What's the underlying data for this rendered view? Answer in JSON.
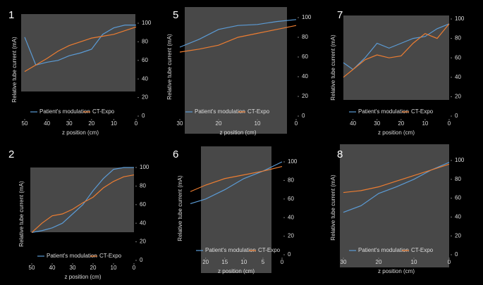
{
  "chart_data": [
    {
      "type": "line",
      "title": "1",
      "y_label": "Relative tube current (mA)",
      "x_label": "z position (cm)",
      "xlim": [
        50,
        0
      ],
      "ylim": [
        0,
        100
      ],
      "xticks": [
        50,
        40,
        30,
        20,
        10,
        0
      ],
      "yticks": [
        0,
        20,
        40,
        60,
        80,
        100
      ],
      "x": [
        50,
        45,
        40,
        35,
        30,
        25,
        20,
        15,
        10,
        5,
        0
      ],
      "series": [
        {
          "name": "Patient's modulation",
          "color": "#5b9bd5",
          "values": [
            85,
            55,
            58,
            60,
            65,
            68,
            72,
            88,
            95,
            98,
            98
          ]
        },
        {
          "name": "CT-Expo",
          "color": "#ed7d31",
          "values": [
            48,
            55,
            62,
            70,
            76,
            80,
            84,
            86,
            88,
            92,
            96
          ]
        }
      ]
    },
    {
      "type": "line",
      "title": "5",
      "y_label": "Relative tube current (mA)",
      "x_label": "z position (cm)",
      "xlim": [
        30,
        0
      ],
      "ylim": [
        0,
        100
      ],
      "xticks": [
        30,
        20,
        10,
        0
      ],
      "yticks": [
        0,
        20,
        40,
        60,
        80,
        100
      ],
      "x": [
        30,
        25,
        20,
        15,
        10,
        5,
        0
      ],
      "series": [
        {
          "name": "Patient's modulation",
          "color": "#5b9bd5",
          "values": [
            70,
            78,
            88,
            92,
            93,
            96,
            98
          ]
        },
        {
          "name": "CT-Expo",
          "color": "#ed7d31",
          "values": [
            65,
            68,
            72,
            80,
            84,
            88,
            92
          ]
        }
      ]
    },
    {
      "type": "line",
      "title": "7",
      "y_label": "Relative tube current (mA)",
      "x_label": "z position (cm)",
      "xlim": [
        44,
        0
      ],
      "ylim": [
        0,
        100
      ],
      "xticks": [
        40,
        30,
        20,
        10,
        0
      ],
      "yticks": [
        0,
        20,
        40,
        60,
        80,
        100
      ],
      "x": [
        44,
        40,
        35,
        30,
        25,
        20,
        15,
        10,
        5,
        0
      ],
      "series": [
        {
          "name": "Patient's modulation",
          "color": "#5b9bd5",
          "values": [
            55,
            48,
            60,
            75,
            70,
            75,
            80,
            82,
            90,
            95
          ]
        },
        {
          "name": "CT-Expo",
          "color": "#ed7d31",
          "values": [
            40,
            48,
            58,
            63,
            60,
            62,
            75,
            85,
            80,
            95
          ]
        }
      ]
    },
    {
      "type": "line",
      "title": "2",
      "y_label": "Relative tube current (mA)",
      "x_label": "z position (cm)",
      "xlim": [
        50,
        0
      ],
      "ylim": [
        0,
        100
      ],
      "xticks": [
        50,
        40,
        30,
        20,
        10,
        0
      ],
      "yticks": [
        0,
        20,
        40,
        60,
        80,
        100
      ],
      "x": [
        50,
        45,
        40,
        35,
        30,
        25,
        20,
        15,
        10,
        5,
        0
      ],
      "series": [
        {
          "name": "Patient's modulation",
          "color": "#5b9bd5",
          "values": [
            30,
            32,
            35,
            40,
            50,
            60,
            75,
            88,
            98,
            100,
            100
          ]
        },
        {
          "name": "CT-Expo",
          "color": "#ed7d31",
          "values": [
            30,
            40,
            48,
            50,
            55,
            62,
            68,
            78,
            85,
            90,
            92
          ]
        }
      ]
    },
    {
      "type": "line",
      "title": "6",
      "y_label": "Relative tube current (mA)",
      "x_label": "z position (cm)",
      "xlim": [
        24,
        0
      ],
      "ylim": [
        0,
        100
      ],
      "xticks": [
        20,
        15,
        10,
        5,
        0
      ],
      "yticks": [
        0,
        20,
        40,
        60,
        80,
        100
      ],
      "x": [
        24,
        20,
        15,
        10,
        5,
        0
      ],
      "series": [
        {
          "name": "Patient's modulation",
          "color": "#5b9bd5",
          "values": [
            55,
            60,
            70,
            82,
            90,
            100
          ]
        },
        {
          "name": "CT-Expo",
          "color": "#ed7d31",
          "values": [
            68,
            75,
            82,
            86,
            90,
            95
          ]
        }
      ]
    },
    {
      "type": "line",
      "title": "8",
      "y_label": "Relative tube current (mA)",
      "x_label": "z position (cm)",
      "xlim": [
        30,
        0
      ],
      "ylim": [
        0,
        100
      ],
      "xticks": [
        30,
        20,
        10,
        0
      ],
      "yticks": [
        0,
        20,
        40,
        60,
        80,
        100
      ],
      "x": [
        30,
        25,
        20,
        15,
        10,
        5,
        0
      ],
      "series": [
        {
          "name": "Patient's modulation",
          "color": "#5b9bd5",
          "values": [
            45,
            52,
            65,
            72,
            80,
            90,
            98
          ]
        },
        {
          "name": "CT-Expo",
          "color": "#ed7d31",
          "values": [
            66,
            68,
            72,
            78,
            84,
            90,
            96
          ]
        }
      ]
    }
  ]
}
